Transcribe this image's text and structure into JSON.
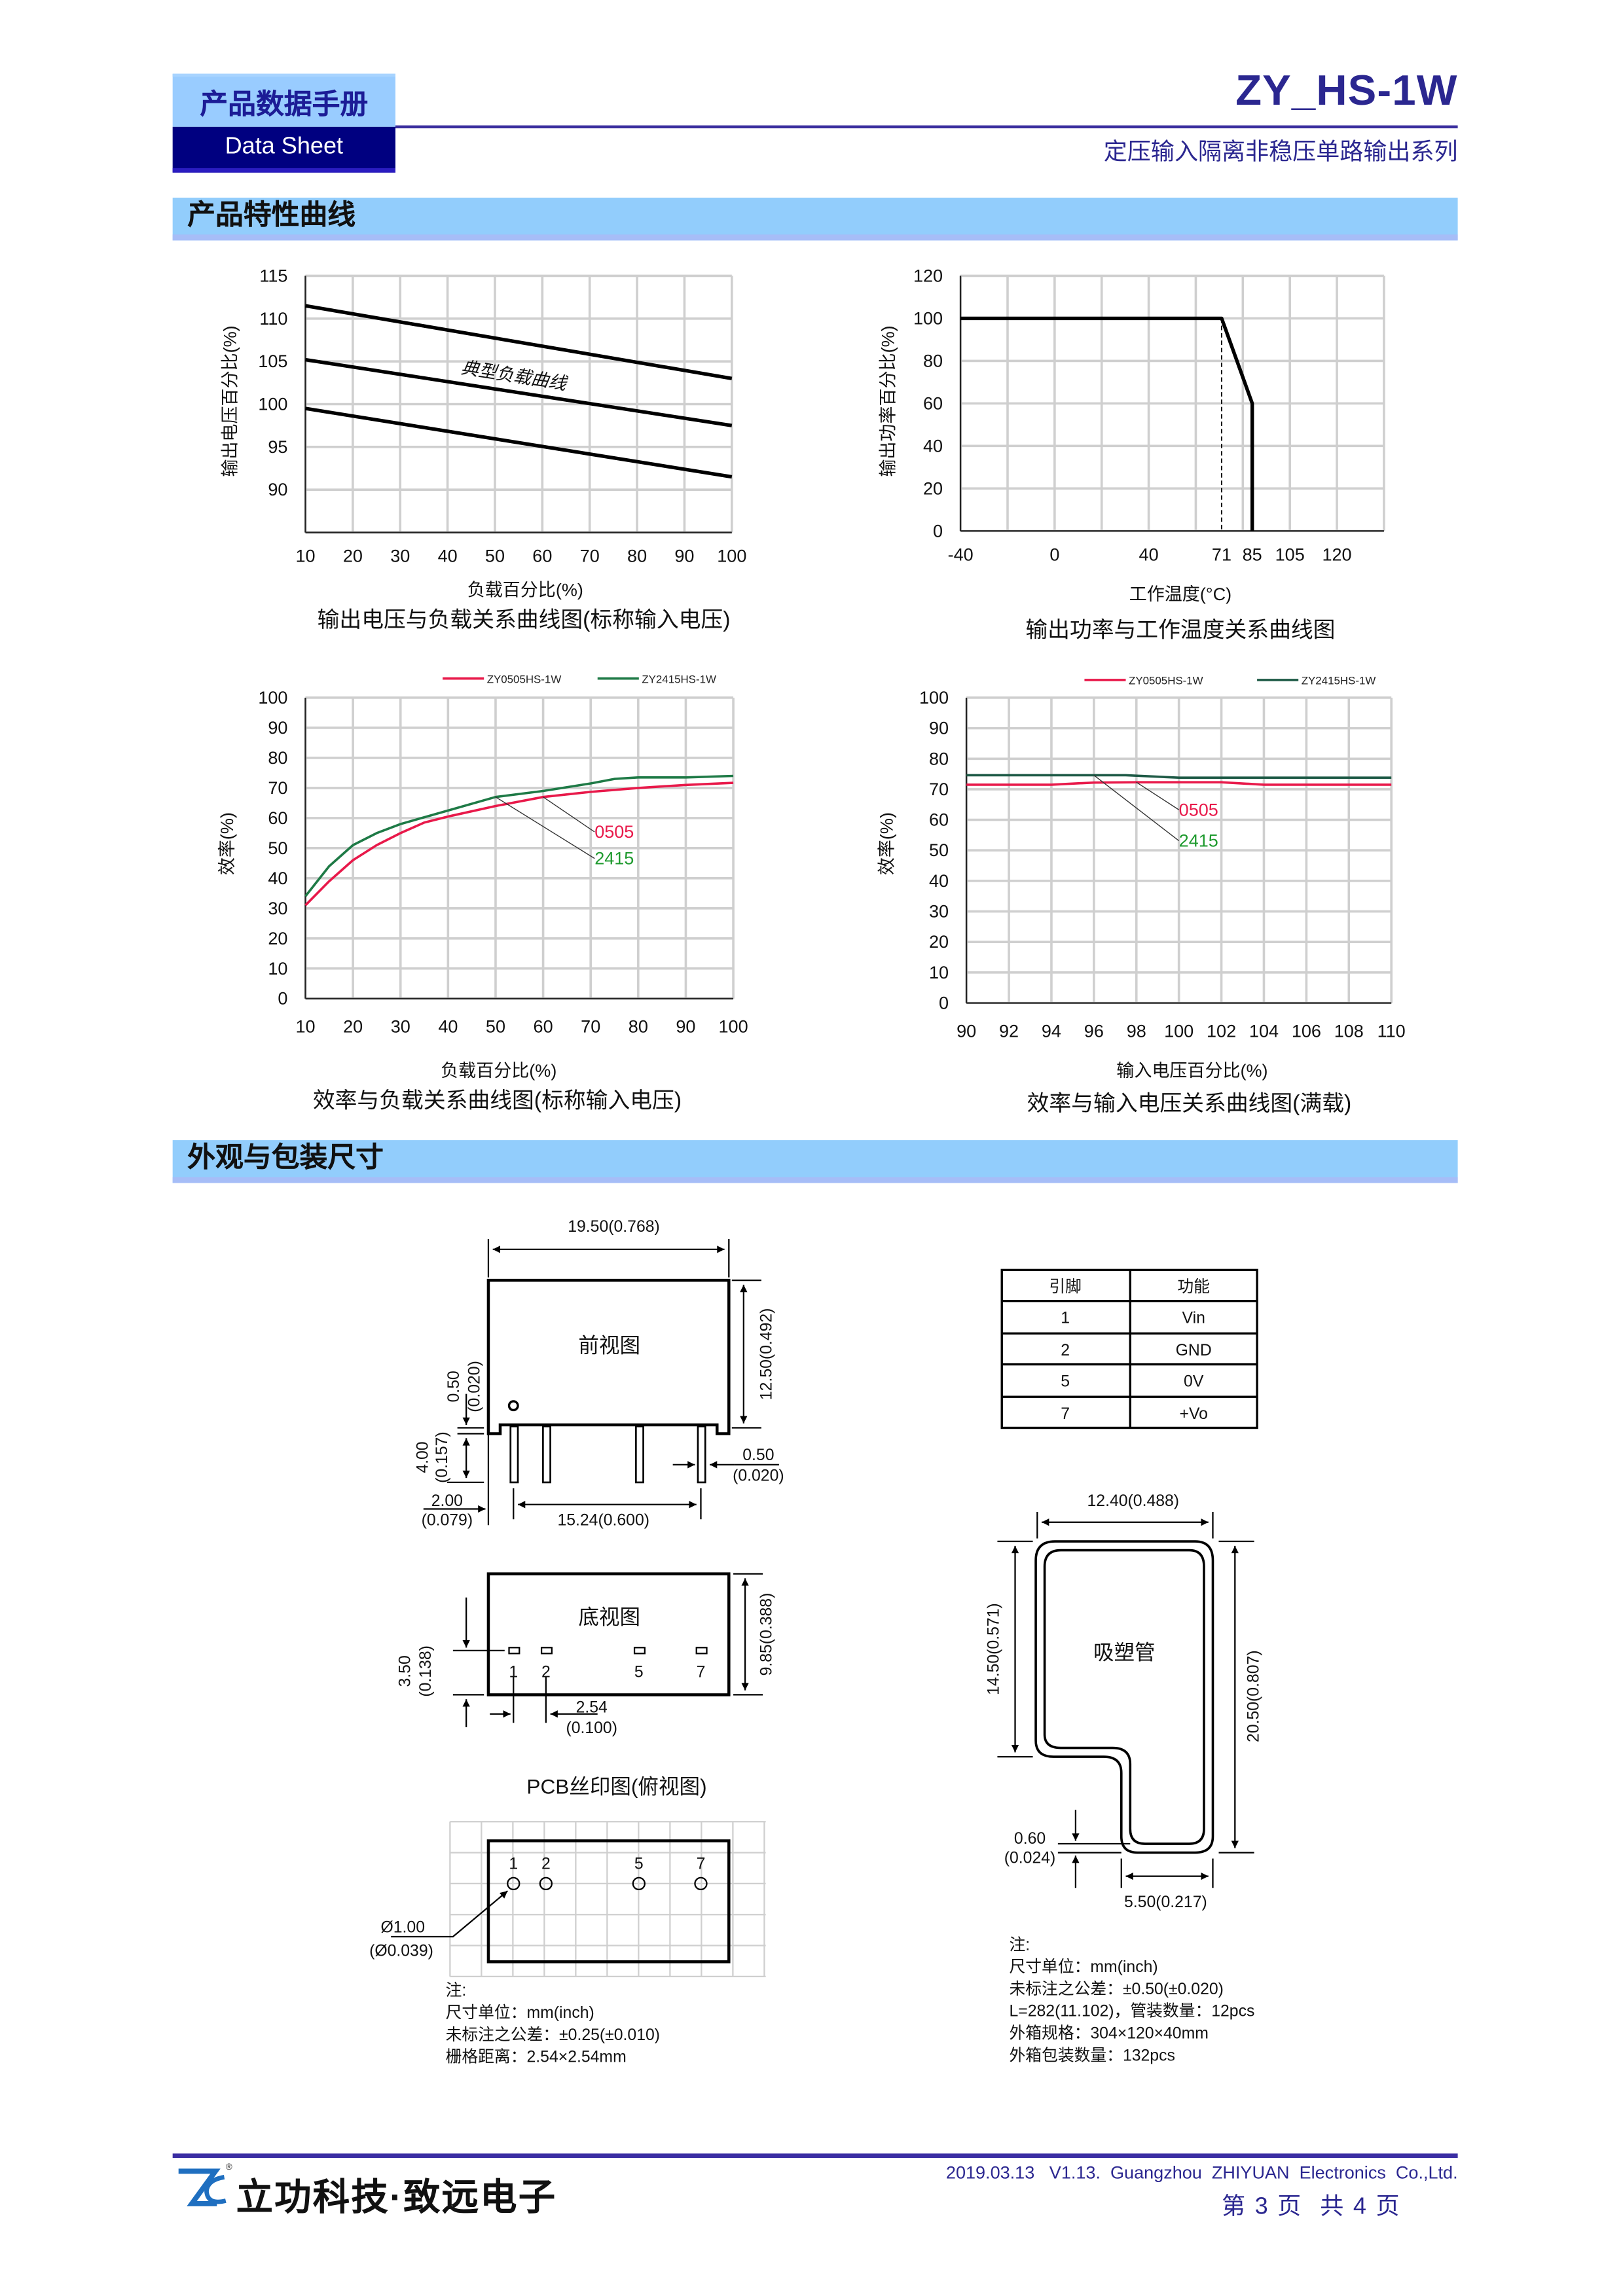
{
  "header": {
    "doc_type_cn": "产品数据手册",
    "doc_type_en": "Data Sheet",
    "product": "ZY_HS-1W",
    "series": "定压输入隔离非稳压单路输出系列"
  },
  "sections": {
    "curves": "产品特性曲线",
    "dimensions": "外观与包装尺寸"
  },
  "colors": {
    "accent_navy": "#000080",
    "section_blue": "#92cdfc",
    "series_0505": "#e8194a",
    "series_2415": "#1e7a46"
  },
  "chart_data": [
    {
      "type": "line",
      "title": "输出电压与负载关系曲线图(标称输入电压)",
      "xlabel": "负载百分比(%)",
      "ylabel": "输出电压百分比(%)",
      "xlim": [
        10,
        100
      ],
      "ylim": [
        85,
        115
      ],
      "xticks": [
        10,
        20,
        30,
        40,
        50,
        60,
        70,
        80,
        90,
        100
      ],
      "yticks": [
        90,
        95,
        100,
        105,
        110,
        115
      ],
      "grid": true,
      "series": [
        {
          "x": [
            10,
            100
          ],
          "y": [
            111.5,
            103.0
          ]
        },
        {
          "x": [
            10,
            100
          ],
          "y": [
            105.2,
            97.5
          ]
        },
        {
          "x": [
            10,
            100
          ],
          "y": [
            99.5,
            91.5
          ]
        }
      ],
      "annotations": [
        {
          "text": "典型负载曲线"
        }
      ]
    },
    {
      "type": "line",
      "title": "输出功率与工作温度关系曲线图",
      "xlabel": "工作温度(°C)",
      "ylabel": "输出功率百分比(%)",
      "ylim": [
        0,
        120
      ],
      "xticks": [
        -40,
        0,
        40,
        71,
        85,
        105,
        120
      ],
      "yticks": [
        0,
        20,
        40,
        60,
        80,
        100,
        120
      ],
      "grid": true,
      "series": [
        {
          "x": [
            -40,
            71,
            85,
            85
          ],
          "y": [
            100,
            100,
            60,
            0
          ]
        }
      ],
      "reference_lines": [
        {
          "x": [
            71,
            71
          ],
          "y": [
            100,
            0
          ],
          "style": "dashed"
        }
      ]
    },
    {
      "type": "line",
      "title": "效率与负载关系曲线图(标称输入电压)",
      "xlabel": "负载百分比(%)",
      "ylabel": "效率(%)",
      "xlim": [
        10,
        100
      ],
      "ylim": [
        0,
        100
      ],
      "xticks": [
        10,
        20,
        30,
        40,
        50,
        60,
        70,
        80,
        90,
        100
      ],
      "yticks": [
        0,
        10,
        20,
        30,
        40,
        50,
        60,
        70,
        80,
        90,
        100
      ],
      "grid": true,
      "legend": "top-right",
      "series": [
        {
          "name": "ZY0505HS-1W",
          "color": "#e8194a",
          "x": [
            10,
            15,
            20,
            25,
            30,
            35,
            40,
            50,
            60,
            70,
            80,
            90,
            100
          ],
          "y": [
            31,
            39,
            46,
            51,
            55,
            58.5,
            60.5,
            64,
            67,
            68.7,
            70,
            71,
            71.7
          ]
        },
        {
          "name": "ZY2415HS-1W",
          "color": "#1e7a46",
          "x": [
            10,
            15,
            20,
            25,
            30,
            40,
            50,
            60,
            70,
            75,
            80,
            90,
            100
          ],
          "y": [
            34,
            44,
            51,
            55,
            58,
            62.5,
            67,
            69,
            71.5,
            73,
            73.5,
            73.5,
            74
          ]
        }
      ],
      "annotations": [
        {
          "text": "0505",
          "color": "#e8194a",
          "x": 60,
          "y": 67
        },
        {
          "text": "2415",
          "color": "#1e9a2e",
          "x": 50,
          "y": 67
        }
      ]
    },
    {
      "type": "line",
      "title": "效率与输入电压关系曲线图(满载)",
      "xlabel": "输入电压百分比(%)",
      "ylabel": "效率(%)",
      "xlim": [
        90,
        110
      ],
      "ylim": [
        0,
        100
      ],
      "xticks": [
        90,
        92,
        94,
        96,
        98,
        100,
        102,
        104,
        106,
        108,
        110
      ],
      "yticks": [
        0,
        10,
        20,
        30,
        40,
        50,
        60,
        70,
        80,
        90,
        100
      ],
      "grid": true,
      "legend": "top-right",
      "series": [
        {
          "name": "ZY0505HS-1W",
          "color": "#e8194a",
          "x": [
            90,
            94,
            96,
            98,
            102,
            104,
            110
          ],
          "y": [
            71.5,
            71.5,
            72.2,
            72.3,
            72.3,
            71.5,
            71.5
          ]
        },
        {
          "name": "ZY2415HS-1W",
          "color": "#1e5a46",
          "x": [
            90,
            97.5,
            100,
            110
          ],
          "y": [
            74.6,
            74.6,
            73.8,
            73.8
          ]
        }
      ],
      "annotations": [
        {
          "text": "0505",
          "color": "#e8194a",
          "x": 98,
          "y": 72.3
        },
        {
          "text": "2415",
          "color": "#1e9a2e",
          "x": 96,
          "y": 74.6
        }
      ]
    }
  ],
  "drawings": {
    "front_view": {
      "label": "前视图",
      "width": "19.50(0.768)",
      "height": "12.50(0.492)",
      "standoff_mm": "0.50",
      "standoff_in": "(0.020)",
      "pin_length_mm": "4.00",
      "pin_length_in": "(0.157)",
      "edge_to_pin_mm": "2.00",
      "edge_to_pin_in": "(0.079)",
      "pin_span": "15.24(0.600)",
      "pin_width_mm": "0.50",
      "pin_width_in": "(0.020)"
    },
    "bottom_view": {
      "label": "底视图",
      "depth": "9.85(0.388)",
      "pin_offset_mm": "3.50",
      "pin_offset_in": "(0.138)",
      "pitch_mm": "2.54",
      "pitch_in": "(0.100)",
      "pins": [
        "1",
        "2",
        "5",
        "7"
      ]
    },
    "pcb": {
      "title": "PCB丝印图(俯视图)",
      "hole_mm": "Ø1.00",
      "hole_in": "(Ø0.039)",
      "pins": [
        "1",
        "2",
        "5",
        "7"
      ],
      "notes": [
        "注:",
        "尺寸单位：mm(inch)",
        "未标注之公差：±0.25(±0.010)",
        "栅格距离：2.54×2.54mm"
      ]
    },
    "tube": {
      "label": "吸塑管",
      "width": "12.40(0.488)",
      "upper_height": "14.50(0.571)",
      "total_height": "20.50(0.807)",
      "wall_mm": "0.60",
      "wall_in": "(0.024)",
      "lower_width": "5.50(0.217)",
      "notes": [
        "注:",
        "尺寸单位：mm(inch)",
        "未标注之公差：±0.50(±0.020)",
        "L=282(11.102)，管装数量：12pcs",
        "外箱规格：304×120×40mm",
        "外箱包装数量：132pcs"
      ]
    }
  },
  "pin_table": {
    "headers": [
      "引脚",
      "功能"
    ],
    "rows": [
      [
        "1",
        "Vin"
      ],
      [
        "2",
        "GND"
      ],
      [
        "5",
        "0V"
      ],
      [
        "7",
        "+Vo"
      ]
    ]
  },
  "footer": {
    "logo_text": "ZLG",
    "brand": "立功科技·致远电子",
    "info": "2019.03.13   V1.13.  Guangzhou  ZHIYUAN  Electronics  Co.,Ltd.",
    "page": "第 3 页  共 4 页"
  }
}
